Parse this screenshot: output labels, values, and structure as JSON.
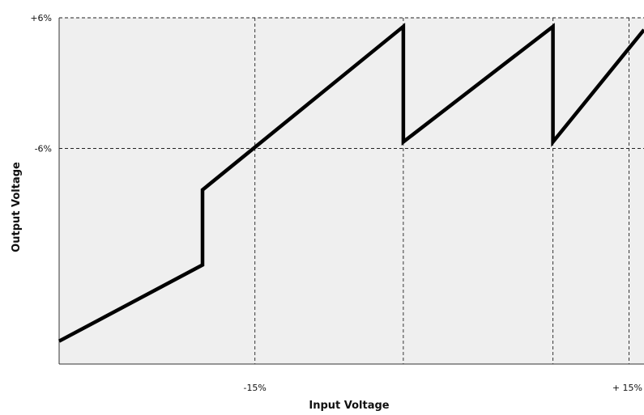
{
  "chart_data": {
    "type": "line",
    "xlabel": "Input Voltage",
    "ylabel": "Output Voltage",
    "x_ticks": [
      {
        "value": -15,
        "label": "-15%"
      },
      {
        "value": 15,
        "label": "+ 15%"
      }
    ],
    "y_ticks": [
      {
        "value": 6,
        "label": "+6%"
      },
      {
        "value": -6,
        "label": "-6%"
      }
    ],
    "grid": true,
    "vertical_gridlines": [
      -15,
      -3.1,
      8.9,
      15
    ],
    "xlim": [
      -30.7,
      16.2
    ],
    "ylim": [
      -25.8,
      6
    ],
    "series": [
      {
        "line_color": "#000000",
        "x": [
          -30.7,
          -19.2,
          -19.2,
          -3.1,
          -3.1,
          8.9,
          8.9,
          16.2
        ],
        "y": [
          -23.7,
          -16.7,
          -9.8,
          5.2,
          -5.4,
          5.2,
          -5.4,
          4.9
        ]
      }
    ],
    "plot_background": "#efefef"
  }
}
